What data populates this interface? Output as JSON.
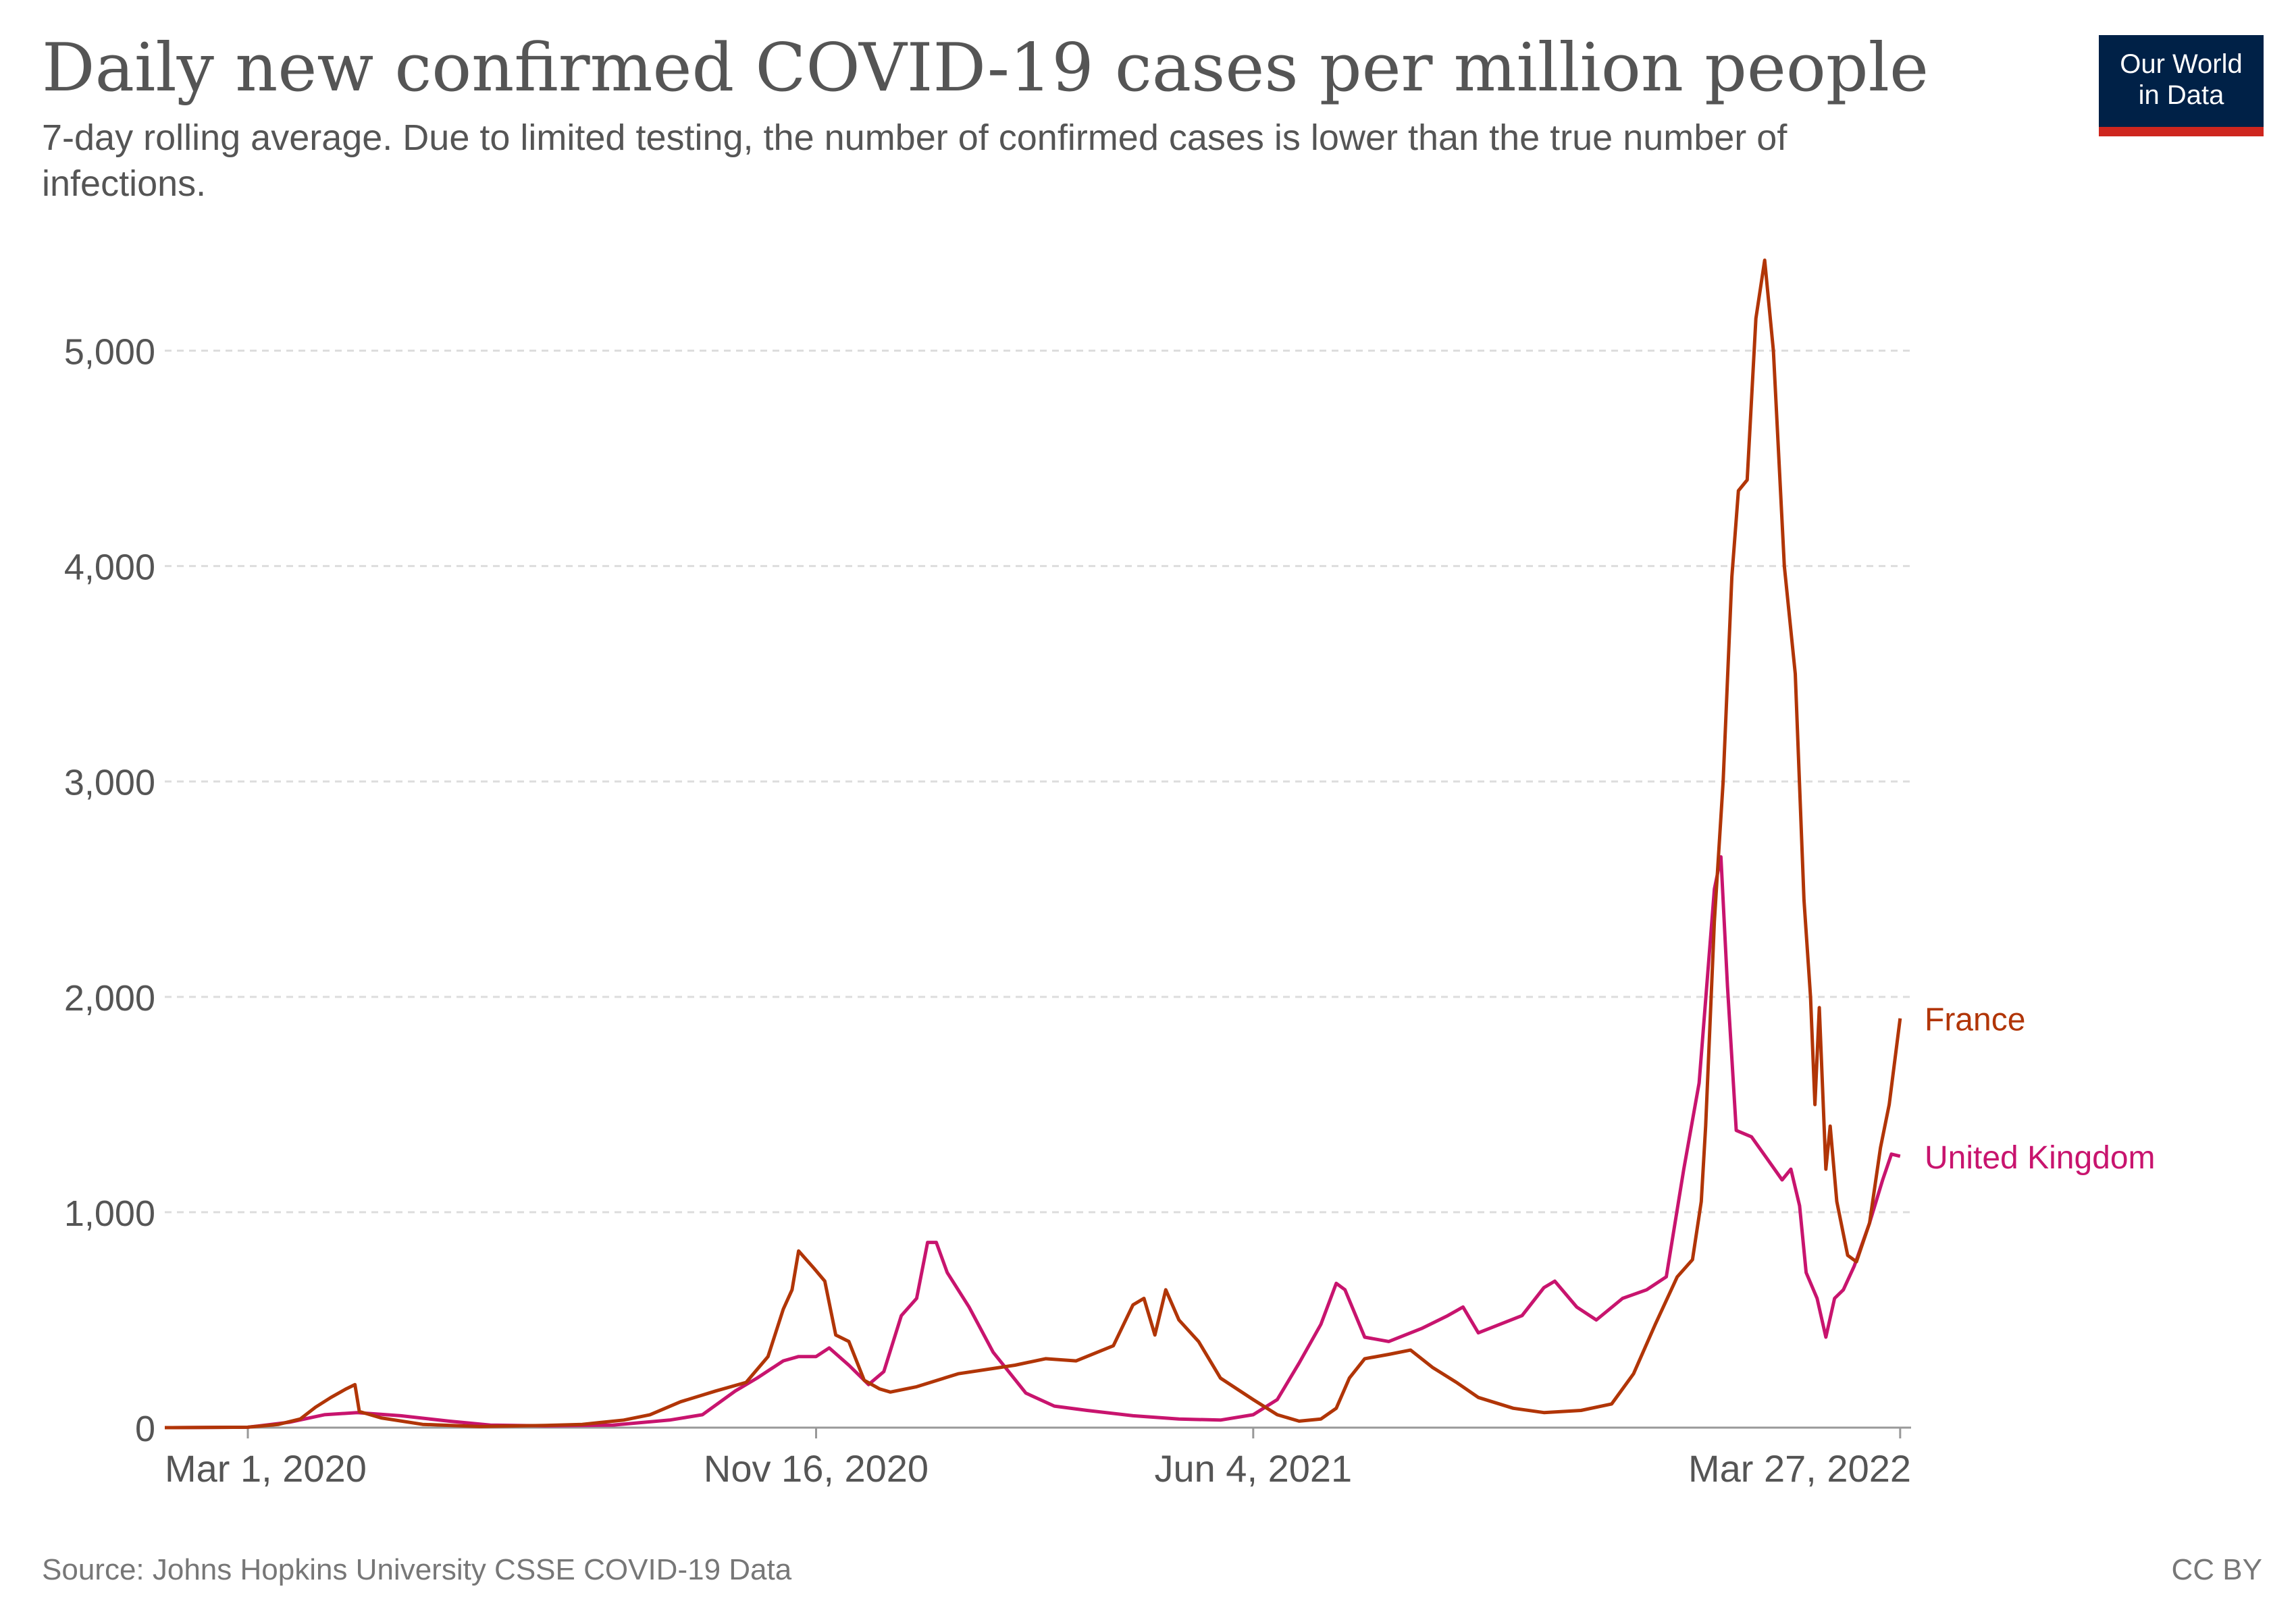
{
  "header": {
    "title": "Daily new confirmed COVID-19 cases per million people",
    "subtitle_line1": "7-day rolling average. Due to limited testing, the number of confirmed cases is lower than the true number of",
    "subtitle_line2": "infections."
  },
  "logo": {
    "line1": "Our World",
    "line2": "in Data"
  },
  "footer": {
    "source": "Source: Johns Hopkins University CSSE COVID-19 Data",
    "license": "CC BY"
  },
  "colors": {
    "france": "#b13507",
    "uk": "#c8146e",
    "grid": "#dddddd",
    "text": "#555555"
  },
  "chart_data": {
    "type": "line",
    "title": "Daily new confirmed COVID-19 cases per million people",
    "subtitle": "7-day rolling average. Due to limited testing, the number of confirmed cases is lower than the true number of infections.",
    "x_type": "date",
    "x_range": [
      "2020-01-23",
      "2022-04-01"
    ],
    "ylim": [
      0,
      5500
    ],
    "y_ticks": [
      0,
      1000,
      2000,
      3000,
      4000,
      5000
    ],
    "y_tick_labels": [
      "0",
      "1,000",
      "2,000",
      "3,000",
      "4,000",
      "5,000"
    ],
    "x_ticks": [
      "2020-03-01",
      "2020-11-16",
      "2021-06-04",
      "2022-03-27"
    ],
    "x_tick_labels": [
      "Mar 1, 2020",
      "Nov 16, 2020",
      "Jun 4, 2021",
      "Mar 27, 2022"
    ],
    "grid": "horizontal dashed",
    "legend": "inline labels at line ends",
    "series": [
      {
        "name": "France",
        "color": "#b13507",
        "points": [
          [
            "2020-01-23",
            0
          ],
          [
            "2020-03-01",
            2
          ],
          [
            "2020-03-15",
            15
          ],
          [
            "2020-03-25",
            40
          ],
          [
            "2020-04-01",
            95
          ],
          [
            "2020-04-08",
            140
          ],
          [
            "2020-04-15",
            180
          ],
          [
            "2020-04-19",
            200
          ],
          [
            "2020-04-21",
            75
          ],
          [
            "2020-05-01",
            45
          ],
          [
            "2020-05-20",
            15
          ],
          [
            "2020-06-15",
            5
          ],
          [
            "2020-07-15",
            10
          ],
          [
            "2020-08-01",
            15
          ],
          [
            "2020-08-20",
            35
          ],
          [
            "2020-09-01",
            60
          ],
          [
            "2020-09-15",
            120
          ],
          [
            "2020-10-01",
            170
          ],
          [
            "2020-10-15",
            210
          ],
          [
            "2020-10-25",
            330
          ],
          [
            "2020-11-01",
            550
          ],
          [
            "2020-11-05",
            640
          ],
          [
            "2020-11-08",
            820
          ],
          [
            "2020-11-15",
            740
          ],
          [
            "2020-11-20",
            680
          ],
          [
            "2020-11-25",
            430
          ],
          [
            "2020-12-01",
            400
          ],
          [
            "2020-12-08",
            220
          ],
          [
            "2020-12-15",
            180
          ],
          [
            "2020-12-20",
            165
          ],
          [
            "2021-01-01",
            190
          ],
          [
            "2021-01-20",
            250
          ],
          [
            "2021-02-15",
            290
          ],
          [
            "2021-03-01",
            320
          ],
          [
            "2021-03-15",
            310
          ],
          [
            "2021-04-01",
            380
          ],
          [
            "2021-04-10",
            570
          ],
          [
            "2021-04-15",
            600
          ],
          [
            "2021-04-20",
            430
          ],
          [
            "2021-04-25",
            640
          ],
          [
            "2021-05-01",
            500
          ],
          [
            "2021-05-10",
            400
          ],
          [
            "2021-05-20",
            230
          ],
          [
            "2021-06-04",
            130
          ],
          [
            "2021-06-15",
            60
          ],
          [
            "2021-06-25",
            30
          ],
          [
            "2021-07-05",
            40
          ],
          [
            "2021-07-12",
            90
          ],
          [
            "2021-07-18",
            230
          ],
          [
            "2021-07-25",
            320
          ],
          [
            "2021-08-05",
            340
          ],
          [
            "2021-08-15",
            360
          ],
          [
            "2021-08-25",
            280
          ],
          [
            "2021-09-05",
            210
          ],
          [
            "2021-09-15",
            140
          ],
          [
            "2021-10-01",
            90
          ],
          [
            "2021-10-15",
            70
          ],
          [
            "2021-11-01",
            80
          ],
          [
            "2021-11-15",
            110
          ],
          [
            "2021-11-25",
            250
          ],
          [
            "2021-12-05",
            480
          ],
          [
            "2021-12-15",
            700
          ],
          [
            "2021-12-22",
            780
          ],
          [
            "2021-12-26",
            1050
          ],
          [
            "2021-12-28",
            1400
          ],
          [
            "2022-01-01",
            2350
          ],
          [
            "2022-01-05",
            3000
          ],
          [
            "2022-01-09",
            3950
          ],
          [
            "2022-01-12",
            4350
          ],
          [
            "2022-01-16",
            4400
          ],
          [
            "2022-01-20",
            5150
          ],
          [
            "2022-01-24",
            5420
          ],
          [
            "2022-01-28",
            5000
          ],
          [
            "2022-02-02",
            4000
          ],
          [
            "2022-02-07",
            3500
          ],
          [
            "2022-02-11",
            2450
          ],
          [
            "2022-02-14",
            2000
          ],
          [
            "2022-02-16",
            1500
          ],
          [
            "2022-02-18",
            1950
          ],
          [
            "2022-02-21",
            1200
          ],
          [
            "2022-02-23",
            1400
          ],
          [
            "2022-02-26",
            1050
          ],
          [
            "2022-03-03",
            800
          ],
          [
            "2022-03-07",
            770
          ],
          [
            "2022-03-13",
            950
          ],
          [
            "2022-03-18",
            1300
          ],
          [
            "2022-03-22",
            1500
          ],
          [
            "2022-03-27",
            1900
          ]
        ]
      },
      {
        "name": "United Kingdom",
        "color": "#c8146e",
        "points": [
          [
            "2020-01-23",
            0
          ],
          [
            "2020-03-01",
            2
          ],
          [
            "2020-03-20",
            25
          ],
          [
            "2020-04-05",
            60
          ],
          [
            "2020-04-20",
            70
          ],
          [
            "2020-05-10",
            55
          ],
          [
            "2020-06-01",
            30
          ],
          [
            "2020-06-20",
            12
          ],
          [
            "2020-07-15",
            8
          ],
          [
            "2020-08-15",
            12
          ],
          [
            "2020-09-10",
            35
          ],
          [
            "2020-09-25",
            60
          ],
          [
            "2020-10-10",
            170
          ],
          [
            "2020-10-20",
            230
          ],
          [
            "2020-11-01",
            310
          ],
          [
            "2020-11-08",
            330
          ],
          [
            "2020-11-16",
            330
          ],
          [
            "2020-11-22",
            370
          ],
          [
            "2020-12-01",
            290
          ],
          [
            "2020-12-10",
            200
          ],
          [
            "2020-12-17",
            260
          ],
          [
            "2020-12-25",
            520
          ],
          [
            "2021-01-01",
            600
          ],
          [
            "2021-01-06",
            860
          ],
          [
            "2021-01-10",
            860
          ],
          [
            "2021-01-15",
            720
          ],
          [
            "2021-01-25",
            560
          ],
          [
            "2021-02-05",
            350
          ],
          [
            "2021-02-20",
            160
          ],
          [
            "2021-03-05",
            100
          ],
          [
            "2021-03-20",
            80
          ],
          [
            "2021-04-10",
            55
          ],
          [
            "2021-05-01",
            40
          ],
          [
            "2021-05-20",
            35
          ],
          [
            "2021-06-04",
            60
          ],
          [
            "2021-06-15",
            130
          ],
          [
            "2021-06-25",
            300
          ],
          [
            "2021-07-05",
            480
          ],
          [
            "2021-07-12",
            670
          ],
          [
            "2021-07-16",
            640
          ],
          [
            "2021-07-25",
            420
          ],
          [
            "2021-08-05",
            400
          ],
          [
            "2021-08-20",
            460
          ],
          [
            "2021-09-01",
            520
          ],
          [
            "2021-09-08",
            560
          ],
          [
            "2021-09-15",
            440
          ],
          [
            "2021-09-25",
            480
          ],
          [
            "2021-10-05",
            520
          ],
          [
            "2021-10-15",
            650
          ],
          [
            "2021-10-20",
            680
          ],
          [
            "2021-10-30",
            560
          ],
          [
            "2021-11-08",
            500
          ],
          [
            "2021-11-20",
            600
          ],
          [
            "2021-12-01",
            640
          ],
          [
            "2021-12-10",
            700
          ],
          [
            "2021-12-18",
            1200
          ],
          [
            "2021-12-25",
            1600
          ],
          [
            "2022-01-01",
            2500
          ],
          [
            "2022-01-04",
            2650
          ],
          [
            "2022-01-07",
            2050
          ],
          [
            "2022-01-11",
            1380
          ],
          [
            "2022-01-18",
            1350
          ],
          [
            "2022-01-25",
            1250
          ],
          [
            "2022-02-01",
            1150
          ],
          [
            "2022-02-05",
            1200
          ],
          [
            "2022-02-09",
            1030
          ],
          [
            "2022-02-12",
            720
          ],
          [
            "2022-02-17",
            600
          ],
          [
            "2022-02-21",
            420
          ],
          [
            "2022-02-25",
            600
          ],
          [
            "2022-03-01",
            640
          ],
          [
            "2022-03-06",
            750
          ],
          [
            "2022-03-13",
            950
          ],
          [
            "2022-03-19",
            1150
          ],
          [
            "2022-03-23",
            1270
          ],
          [
            "2022-03-27",
            1260
          ]
        ]
      }
    ]
  }
}
